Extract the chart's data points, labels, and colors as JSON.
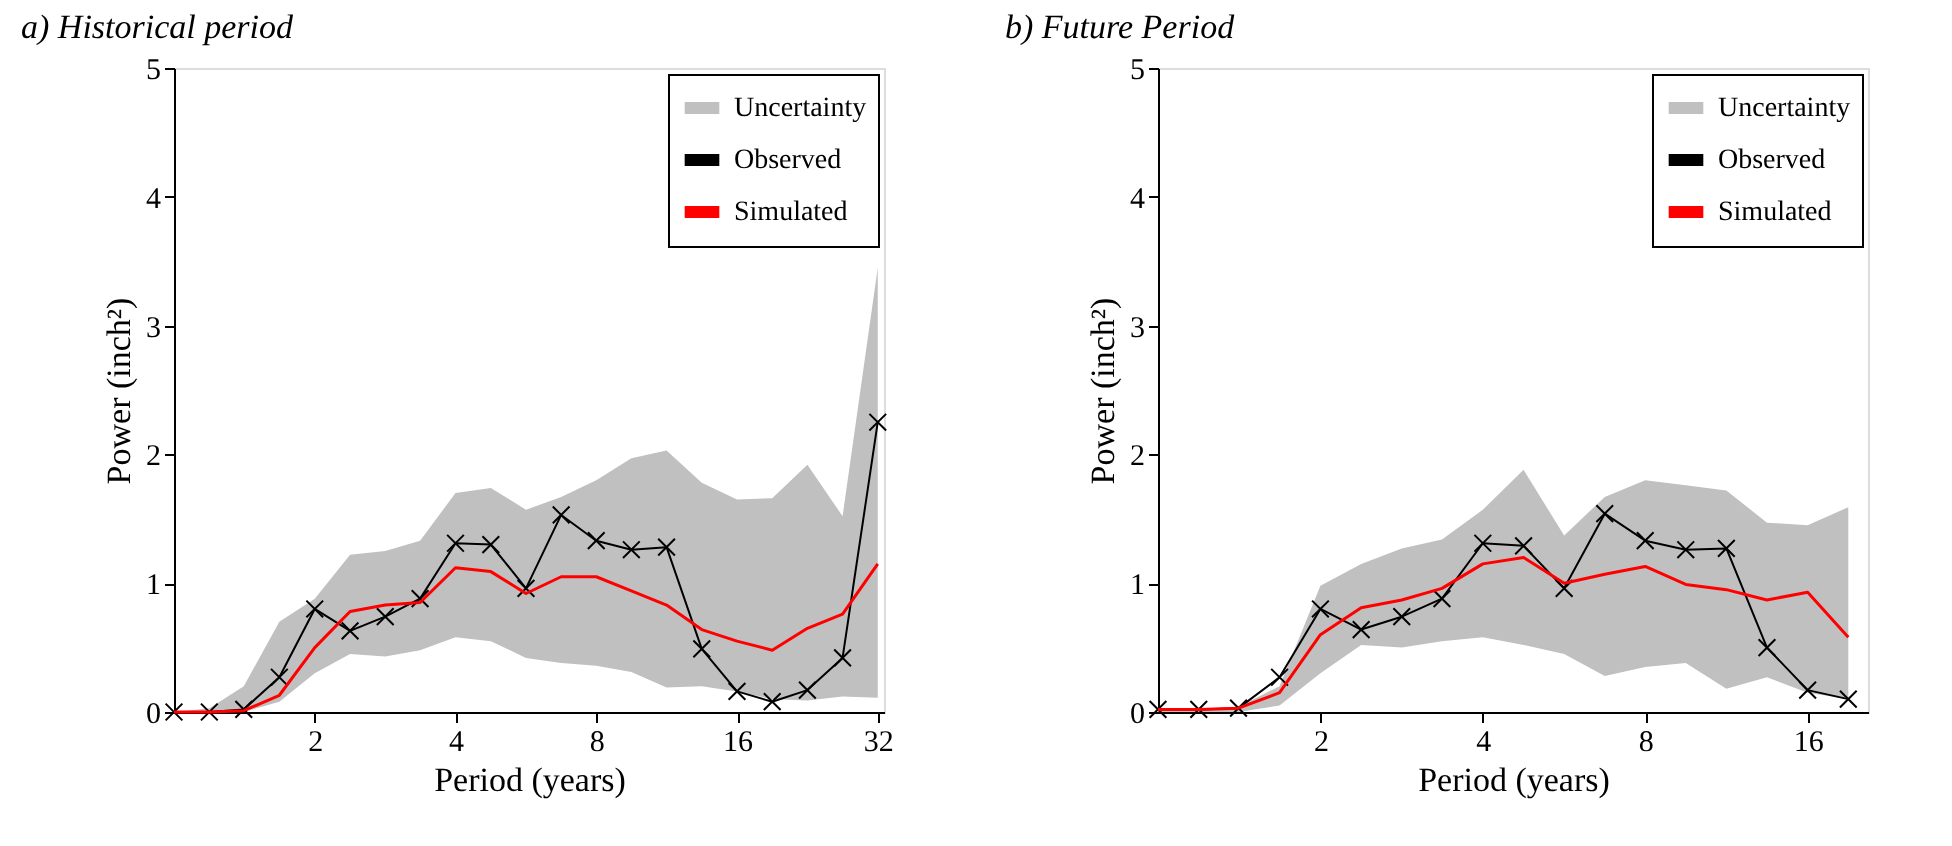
{
  "chart_data": [
    {
      "type": "line",
      "title": "a) Historical period",
      "xlabel": "Period (years)",
      "ylabel": "Power (inch²)",
      "log": "x",
      "x": [
        1,
        1.19,
        1.41,
        1.68,
        2,
        2.38,
        2.83,
        3.36,
        4,
        4.76,
        5.66,
        6.73,
        8,
        9.51,
        11.31,
        13.45,
        16,
        19.03,
        22.63,
        26.91,
        32
      ],
      "xlim": [
        1,
        33
      ],
      "xticks": [
        2,
        4,
        8,
        16,
        32
      ],
      "ylim": [
        0,
        5
      ],
      "yticks": [
        0,
        1,
        2,
        3,
        4,
        5
      ],
      "grid": false,
      "legend": "top right",
      "series": [
        {
          "name": "Uncertainty",
          "color": "#c0c0c0",
          "values": [
            null,
            null,
            null,
            null,
            null,
            null,
            null,
            null,
            null,
            null,
            null,
            null,
            null,
            null,
            null,
            null,
            null,
            null,
            null,
            null,
            null
          ],
          "lower": [
            0,
            0,
            0,
            0.08,
            0.3,
            0.45,
            0.43,
            0.48,
            0.58,
            0.55,
            0.42,
            0.38,
            0.36,
            0.31,
            0.19,
            0.2,
            0.16,
            0.1,
            0.09,
            0.12,
            0.11
          ],
          "upper": [
            0,
            0.03,
            0.2,
            0.7,
            0.88,
            1.22,
            1.25,
            1.33,
            1.7,
            1.74,
            1.57,
            1.67,
            1.8,
            1.97,
            2.03,
            1.78,
            1.65,
            1.66,
            1.92,
            1.52,
            3.45
          ]
        },
        {
          "name": "Observed",
          "color": "#000000",
          "marker": "cross",
          "values": [
            0,
            0,
            0.02,
            0.27,
            0.8,
            0.63,
            0.74,
            0.88,
            1.31,
            1.3,
            0.96,
            1.53,
            1.33,
            1.26,
            1.28,
            0.49,
            0.16,
            0.08,
            0.17,
            0.42,
            2.25
          ]
        },
        {
          "name": "Simulated",
          "color": "#ff0000",
          "values": [
            0,
            0,
            0.01,
            0.13,
            0.5,
            0.78,
            0.83,
            0.85,
            1.12,
            1.09,
            0.92,
            1.05,
            1.05,
            0.94,
            0.83,
            0.64,
            0.55,
            0.48,
            0.65,
            0.76,
            1.15
          ]
        }
      ]
    },
    {
      "type": "line",
      "title": "b) Future Period",
      "xlabel": "Period (years)",
      "ylabel": "Power (inch²)",
      "log": "x",
      "x": [
        1,
        1.19,
        1.41,
        1.68,
        2,
        2.38,
        2.83,
        3.36,
        4,
        4.76,
        5.66,
        6.73,
        8,
        9.51,
        11.31,
        13.45,
        16,
        19.03
      ],
      "xlim": [
        1,
        20.7
      ],
      "xticks": [
        2,
        4,
        8,
        16
      ],
      "ylim": [
        0,
        5
      ],
      "yticks": [
        0,
        1,
        2,
        3,
        4,
        5
      ],
      "grid": false,
      "legend": "top right",
      "series": [
        {
          "name": "Uncertainty",
          "color": "#c0c0c0",
          "values": [
            null,
            null,
            null,
            null,
            null,
            null,
            null,
            null,
            null,
            null,
            null,
            null,
            null,
            null,
            null,
            null,
            null,
            null
          ],
          "lower": [
            0,
            0,
            0,
            0.05,
            0.3,
            0.52,
            0.5,
            0.55,
            0.58,
            0.52,
            0.45,
            0.28,
            0.35,
            0.38,
            0.18,
            0.27,
            0.15,
            0.1
          ],
          "upper": [
            0.02,
            0.02,
            0.04,
            0.2,
            0.98,
            1.15,
            1.27,
            1.34,
            1.57,
            1.88,
            1.37,
            1.67,
            1.8,
            1.76,
            1.72,
            1.47,
            1.45,
            1.59
          ]
        },
        {
          "name": "Observed",
          "color": "#000000",
          "marker": "cross",
          "values": [
            0.02,
            0.02,
            0.03,
            0.27,
            0.8,
            0.64,
            0.74,
            0.88,
            1.31,
            1.29,
            0.96,
            1.54,
            1.33,
            1.26,
            1.27,
            0.5,
            0.17,
            0.1
          ]
        },
        {
          "name": "Simulated",
          "color": "#ff0000",
          "values": [
            0.02,
            0.02,
            0.03,
            0.15,
            0.6,
            0.81,
            0.87,
            0.96,
            1.15,
            1.2,
            1.0,
            1.07,
            1.13,
            0.99,
            0.95,
            0.87,
            0.93,
            0.58
          ]
        }
      ]
    }
  ]
}
